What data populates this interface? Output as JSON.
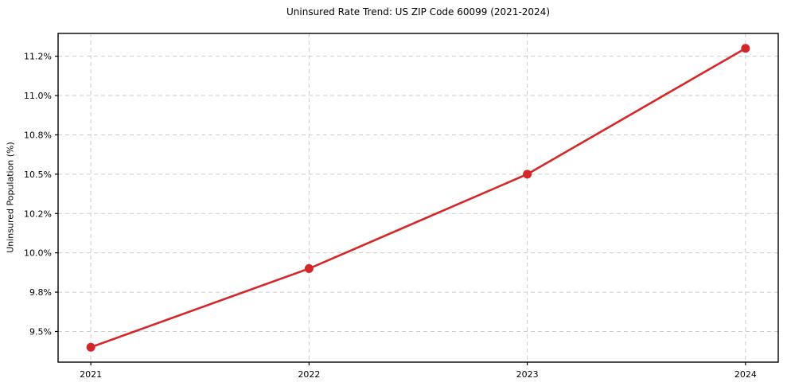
{
  "chart_data": {
    "type": "line",
    "title": "Uninsured Rate Trend: US ZIP Code 60099 (2021-2024)",
    "ylabel": "Uninsured Population (%)",
    "xlabel": "",
    "x": [
      2021,
      2022,
      2023,
      2024
    ],
    "series": [
      {
        "name": "Uninsured rate",
        "values": [
          9.4,
          9.9,
          10.5,
          11.3
        ]
      }
    ],
    "x_tick_labels": [
      "2021",
      "2022",
      "2023",
      "2024"
    ],
    "y_ticks": [
      9.5,
      9.75,
      10.0,
      10.25,
      10.5,
      10.75,
      11.0,
      11.25
    ],
    "y_tick_labels": [
      "9.5%",
      "9.8%",
      "10.0%",
      "10.2%",
      "10.5%",
      "10.8%",
      "11.0%",
      "11.2%"
    ],
    "xlim": [
      2020.85,
      2024.15
    ],
    "ylim": [
      9.305,
      11.395
    ],
    "grid": true,
    "grid_style": "dashed",
    "legend_position": "none",
    "line_color": "#d62728",
    "marker": "circle",
    "marker_color": "#d62728",
    "grid_color": "#cccccc",
    "axis_color": "#000000",
    "tick_label_color": "#000000",
    "background_color": "#ffffff"
  }
}
